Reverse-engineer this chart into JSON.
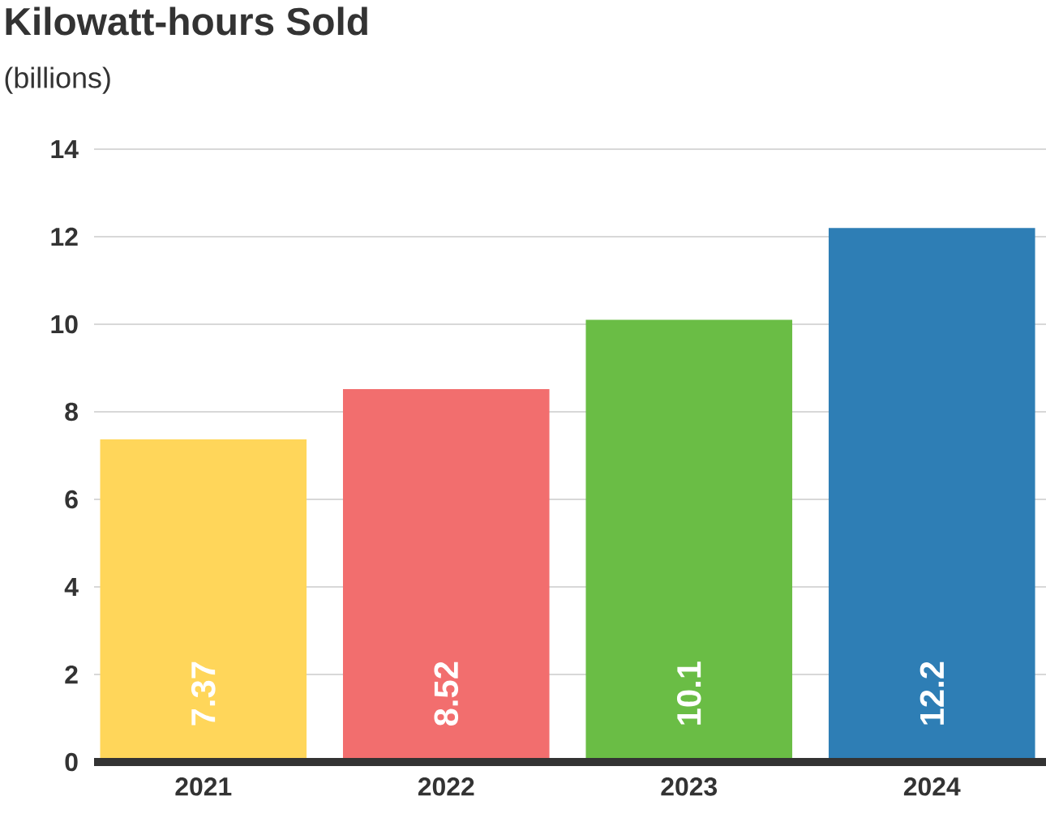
{
  "chart_data": {
    "type": "bar",
    "title": "Kilowatt-hours Sold",
    "subtitle": "(billions)",
    "categories": [
      "2021",
      "2022",
      "2023",
      "2024"
    ],
    "values": [
      7.37,
      8.52,
      10.1,
      12.2
    ],
    "colors": [
      "#ffd65a",
      "#f26e6e",
      "#6abd45",
      "#2e7eb5"
    ],
    "ylim": [
      0,
      14
    ],
    "yticks": [
      0,
      2,
      4,
      6,
      8,
      10,
      12,
      14
    ],
    "grid": "y",
    "data_labels": true
  }
}
